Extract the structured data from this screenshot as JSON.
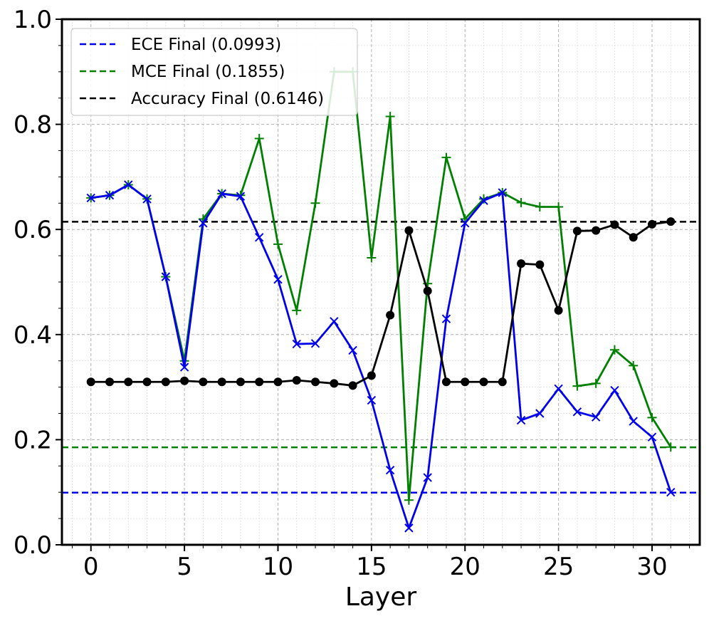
{
  "chart_data": {
    "type": "line",
    "title": "",
    "xlabel": "Layer",
    "ylabel": "",
    "xlim": [
      -1.55,
      32.55
    ],
    "ylim": [
      0.0,
      1.0
    ],
    "xticks": [
      "0",
      "5",
      "10",
      "15",
      "20",
      "25",
      "30"
    ],
    "yticks": [
      "0.0",
      "0.2",
      "0.4",
      "0.6",
      "0.8",
      "1.0"
    ],
    "grid": true,
    "legend_position": "top-left",
    "x": [
      0,
      1,
      2,
      3,
      4,
      5,
      6,
      7,
      8,
      9,
      10,
      11,
      12,
      13,
      14,
      15,
      16,
      17,
      18,
      19,
      20,
      21,
      22,
      23,
      24,
      25,
      26,
      27,
      28,
      29,
      30,
      31
    ],
    "series": [
      {
        "key": "ece",
        "color": "#0000ee",
        "marker": "x",
        "values": [
          0.66,
          0.665,
          0.685,
          0.658,
          0.51,
          0.338,
          0.612,
          0.668,
          0.663,
          0.585,
          0.505,
          0.382,
          0.383,
          0.425,
          0.37,
          0.275,
          0.142,
          0.032,
          0.128,
          0.43,
          0.612,
          0.655,
          0.67,
          0.237,
          0.25,
          0.297,
          0.253,
          0.243,
          0.294,
          0.235,
          0.205,
          0.1
        ]
      },
      {
        "key": "mce",
        "color": "#008000",
        "marker": "+",
        "values": [
          0.66,
          0.665,
          0.685,
          0.658,
          0.51,
          0.35,
          0.62,
          0.668,
          0.665,
          0.773,
          0.572,
          0.446,
          0.65,
          0.9,
          0.9,
          0.546,
          0.815,
          0.085,
          0.497,
          0.737,
          0.62,
          0.658,
          0.67,
          0.651,
          0.643,
          0.643,
          0.302,
          0.307,
          0.371,
          0.341,
          0.242,
          0.186
        ]
      },
      {
        "key": "accuracy",
        "color": "#000000",
        "marker": "o",
        "values": [
          0.31,
          0.31,
          0.31,
          0.31,
          0.31,
          0.312,
          0.31,
          0.31,
          0.31,
          0.31,
          0.31,
          0.313,
          0.31,
          0.307,
          0.303,
          0.322,
          0.437,
          0.598,
          0.483,
          0.31,
          0.31,
          0.31,
          0.31,
          0.535,
          0.533,
          0.446,
          0.597,
          0.598,
          0.609,
          0.585,
          0.61,
          0.615
        ]
      }
    ],
    "reference_lines": [
      {
        "label": "ECE Final (0.0993)",
        "value": 0.0993,
        "color": "#0000ee"
      },
      {
        "label": "MCE Final (0.1855)",
        "value": 0.1855,
        "color": "#008000"
      },
      {
        "label": "Accuracy Final (0.6146)",
        "value": 0.6146,
        "color": "#000000"
      }
    ]
  }
}
